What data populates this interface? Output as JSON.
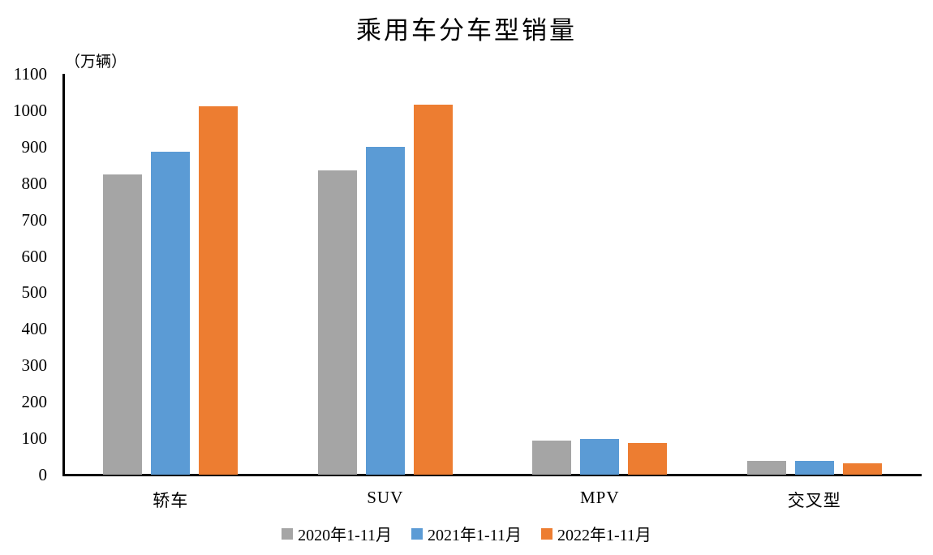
{
  "title": "乘用车分车型销量",
  "unit_label": "（万辆）",
  "chart_data": {
    "type": "bar",
    "title": "乘用车分车型销量",
    "ylabel_unit": "（万辆）",
    "xlabel": "",
    "categories": [
      "轿车",
      "SUV",
      "MPV",
      "交叉型"
    ],
    "series": [
      {
        "name": "2020年1-11月",
        "color": "#A5A5A5",
        "values": [
          825,
          835,
          93,
          38
        ]
      },
      {
        "name": "2021年1-11月",
        "color": "#5B9BD5",
        "values": [
          887,
          900,
          98,
          38
        ]
      },
      {
        "name": "2022年1-11月",
        "color": "#ED7D31",
        "values": [
          1010,
          1015,
          87,
          31
        ]
      }
    ],
    "ylim": [
      0,
      1100
    ],
    "yticks": [
      0,
      100,
      200,
      300,
      400,
      500,
      600,
      700,
      800,
      900,
      1000,
      1100
    ],
    "grid": false,
    "legend_position": "bottom",
    "axis_color": "#000000"
  }
}
